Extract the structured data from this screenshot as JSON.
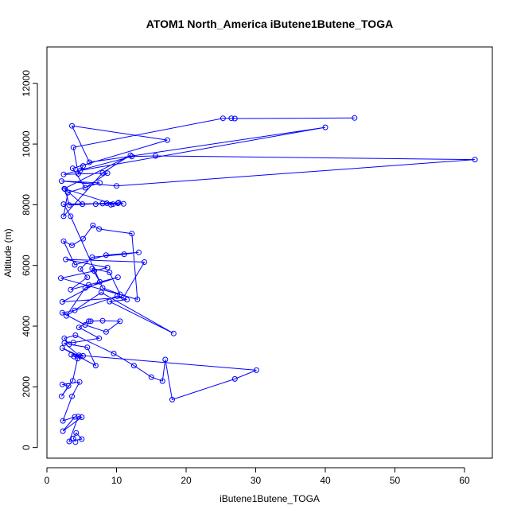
{
  "chart_data": {
    "type": "scatter",
    "title": "ATOM1 North_America iButene1Butene_TOGA",
    "xlabel": "iButene1Butene_TOGA",
    "ylabel": "Altitude (m)",
    "xlim": [
      0,
      64
    ],
    "ylim": [
      -350,
      13200
    ],
    "x_ticks": [
      0,
      10,
      20,
      30,
      40,
      50,
      60
    ],
    "y_ticks": [
      0,
      2000,
      4000,
      6000,
      8000,
      10000,
      12000
    ],
    "grid": false,
    "legend": "none",
    "series_color": "#0000ff",
    "marker": "open-circle",
    "connect_points": true,
    "series": [
      {
        "x": [
          4.1,
          3.8,
          4.2,
          5.0,
          3.2,
          4.5,
          5.0,
          2.3,
          4.0,
          2.3,
          3.6,
          4.7,
          2.2,
          3.1,
          2.1,
          3.7,
          4.4,
          3.9,
          5.2,
          3.5,
          4.8,
          2.2,
          7.0,
          5.8,
          3.2,
          2.5,
          4.1,
          9.6,
          12.5,
          15.0,
          16.6,
          17.0,
          18.0,
          27.0,
          30.1,
          4.6,
          2.5,
          3.8,
          7.5,
          4.6,
          6.0,
          6.3,
          8.0,
          10.5,
          8.5,
          5.5,
          2.2,
          4.0,
          10.1,
          11.5,
          9.0,
          18.2,
          7.8,
          2.8,
          5.5,
          10.2,
          6.0,
          3.4,
          5.8,
          4.8,
          6.5,
          11.1,
          13.2,
          8.5,
          4.0,
          2.4,
          3.6,
          5.2,
          6.6,
          7.5,
          12.2,
          13.0,
          2.0,
          6.8,
          8.7,
          2.7,
          14.0,
          11.0,
          2.2,
          7.6,
          6.5,
          9.0,
          10.5,
          8.0,
          3.4,
          2.4,
          10.2,
          9.2,
          8.6,
          3.2,
          2.6,
          5.1,
          8.0,
          7.0,
          11.0,
          10.3,
          9.5,
          2.5,
          12.0,
          8.0,
          2.4,
          3.0,
          7.6,
          2.1,
          10.0,
          61.5,
          15.6,
          12.2,
          2.4,
          8.7,
          5.5,
          3.7,
          17.3,
          3.6,
          6.1,
          40.0,
          4.8,
          5.2,
          4.5,
          3.8,
          25.3,
          26.5,
          27.0,
          44.2
        ],
        "y": [
          180,
          300,
          480,
          280,
          200,
          1020,
          1000,
          540,
          1010,
          880,
          1690,
          2160,
          2080,
          2030,
          1690,
          2200,
          2930,
          3000,
          3020,
          3060,
          3000,
          3280,
          2700,
          3300,
          3400,
          3600,
          3700,
          3100,
          2700,
          2320,
          2190,
          2900,
          1580,
          2260,
          2550,
          3040,
          3440,
          3460,
          3600,
          3960,
          4160,
          4160,
          4180,
          4160,
          3810,
          4040,
          4440,
          4520,
          4990,
          4870,
          4810,
          3760,
          5110,
          4340,
          5260,
          5610,
          5360,
          5200,
          5610,
          5880,
          6270,
          6370,
          6430,
          6340,
          6020,
          6800,
          6660,
          6880,
          7320,
          7200,
          7050,
          4880,
          5580,
          5820,
          5930,
          6200,
          6110,
          4950,
          4800,
          5460,
          5900,
          5770,
          5050,
          5260,
          7620,
          8020,
          8050,
          8000,
          8050,
          7990,
          8510,
          8020,
          8040,
          8020,
          8030,
          8070,
          8020,
          8530,
          9630,
          9050,
          7620,
          8400,
          8720,
          8780,
          8620,
          9490,
          9610,
          9590,
          9000,
          9040,
          8560,
          9200,
          10130,
          10600,
          9400,
          10550,
          9130,
          9280,
          9020,
          9890,
          10850,
          10850,
          10840,
          10860
        ]
      }
    ]
  }
}
